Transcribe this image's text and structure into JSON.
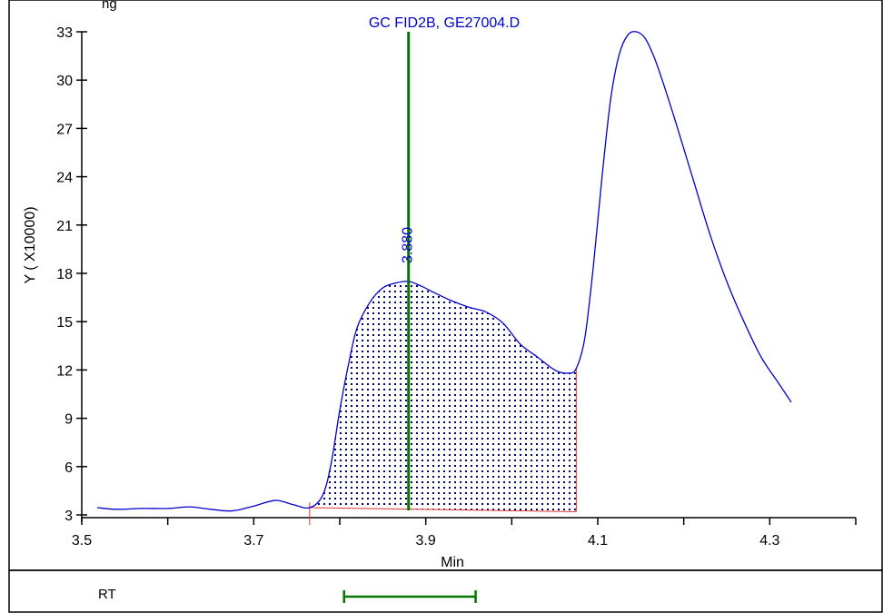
{
  "header_fragment": "ng",
  "chart_data": {
    "type": "line",
    "title": "GC FID2B, GE27004.D",
    "xlabel": "Min",
    "ylabel": "Y ( X10000)",
    "xlim": [
      3.5,
      4.4
    ],
    "ylim": [
      3,
      33
    ],
    "x_ticks": [
      3.5,
      3.6,
      3.7,
      3.8,
      3.9,
      4.0,
      4.1,
      4.2,
      4.3,
      4.4
    ],
    "x_tick_labels": [
      "3.5",
      "",
      "3.7",
      "",
      "3.9",
      "",
      "4.1",
      "",
      "4.3",
      ""
    ],
    "y_ticks": [
      3,
      6,
      9,
      12,
      15,
      18,
      21,
      24,
      27,
      30,
      33
    ],
    "y_tick_labels": [
      "3",
      "6",
      "9",
      "12",
      "15",
      "18",
      "21",
      "24",
      "27",
      "30",
      "33"
    ],
    "grid": false,
    "series": [
      {
        "color": "#0000cc",
        "x": [
          3.518,
          3.54,
          3.57,
          3.6,
          3.625,
          3.65,
          3.675,
          3.7,
          3.725,
          3.745,
          3.765,
          3.78,
          3.79,
          3.8,
          3.81,
          3.82,
          3.835,
          3.85,
          3.865,
          3.88,
          3.895,
          3.91,
          3.93,
          3.95,
          3.97,
          3.99,
          4.01,
          4.03,
          4.05,
          4.065,
          4.075,
          4.085,
          4.095,
          4.105,
          4.115,
          4.125,
          4.135,
          4.145,
          4.155,
          4.165,
          4.175,
          4.19,
          4.21,
          4.23,
          4.25,
          4.27,
          4.29,
          4.31,
          4.325
        ],
        "y": [
          3.45,
          3.35,
          3.4,
          3.4,
          3.5,
          3.35,
          3.25,
          3.55,
          3.9,
          3.65,
          3.45,
          4.2,
          6.2,
          9.5,
          12.3,
          14.6,
          16.2,
          17.1,
          17.4,
          17.5,
          17.2,
          16.8,
          16.3,
          15.9,
          15.6,
          14.9,
          13.6,
          12.8,
          12.0,
          11.8,
          12.1,
          14.0,
          18.5,
          24.0,
          28.8,
          31.6,
          32.8,
          33.0,
          32.6,
          31.5,
          30.0,
          27.5,
          24.0,
          20.5,
          17.5,
          15.0,
          12.8,
          11.2,
          10.0
        ]
      }
    ],
    "integrated_peak": {
      "start": 3.765,
      "end": 4.075,
      "baseline": [
        3.45,
        3.2
      ],
      "fill": "dotted"
    },
    "markers": [
      {
        "x": 3.88,
        "label": "3.880",
        "color": "#007700"
      }
    ],
    "rt_bar": {
      "label": "RT",
      "start": 3.805,
      "end": 3.958,
      "color": "#007700"
    }
  }
}
